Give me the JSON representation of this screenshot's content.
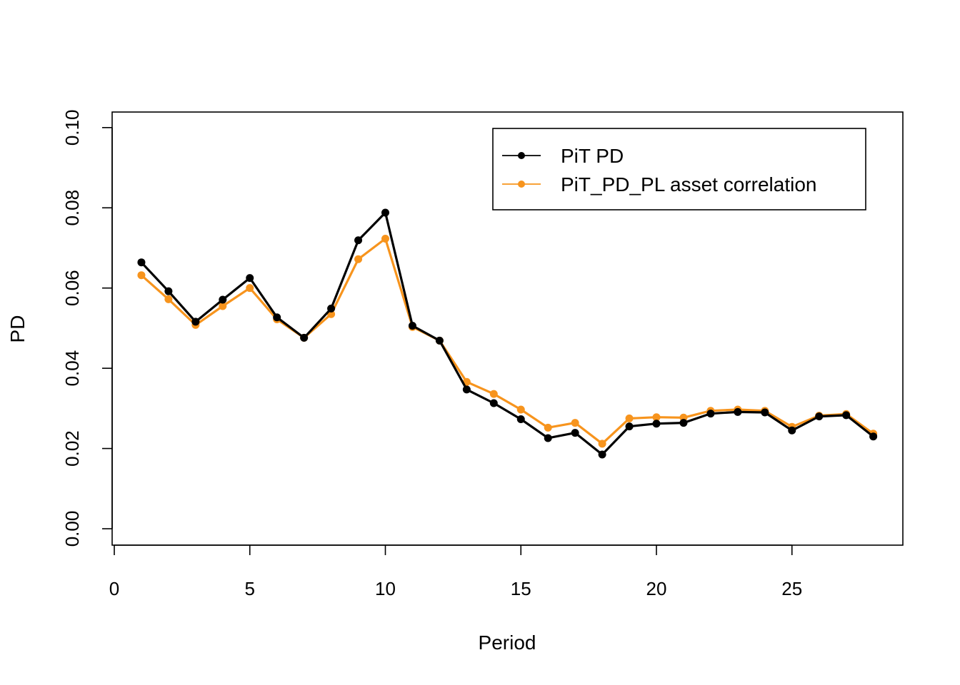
{
  "chart_data": {
    "type": "line",
    "xlabel": "Period",
    "ylabel": "PD",
    "xlim": [
      0,
      28
    ],
    "ylim": [
      0,
      0.1
    ],
    "x_ticks": [
      "0",
      "5",
      "10",
      "15",
      "20",
      "25"
    ],
    "x_tick_values": [
      0,
      5,
      10,
      15,
      20,
      25
    ],
    "y_ticks": [
      "0.00",
      "0.02",
      "0.04",
      "0.06",
      "0.08",
      "0.10"
    ],
    "y_tick_values": [
      0,
      0.02,
      0.04,
      0.06,
      0.08,
      0.1
    ],
    "grid": false,
    "legend_position": "top-right",
    "x": [
      1,
      2,
      3,
      4,
      5,
      6,
      7,
      8,
      9,
      10,
      11,
      12,
      13,
      14,
      15,
      16,
      17,
      18,
      19,
      20,
      21,
      22,
      23,
      24,
      25,
      26,
      27,
      28
    ],
    "series": [
      {
        "name": "PiT PD",
        "color": "#000000",
        "values": [
          0.0664,
          0.0592,
          0.0516,
          0.0571,
          0.0625,
          0.0527,
          0.0476,
          0.0549,
          0.0719,
          0.0788,
          0.0506,
          0.0469,
          0.0347,
          0.0313,
          0.0273,
          0.0226,
          0.0239,
          0.0185,
          0.0255,
          0.0262,
          0.0264,
          0.0287,
          0.0291,
          0.029,
          0.0245,
          0.028,
          0.0283,
          0.023
        ]
      },
      {
        "name": "PiT_PD_PL asset correlation",
        "color": "#F7941D",
        "values": [
          0.0632,
          0.0572,
          0.0508,
          0.0555,
          0.06,
          0.0522,
          0.0476,
          0.0535,
          0.0672,
          0.0723,
          0.0503,
          0.0469,
          0.0366,
          0.0336,
          0.0297,
          0.0252,
          0.0264,
          0.0212,
          0.0275,
          0.0278,
          0.0277,
          0.0294,
          0.0297,
          0.0294,
          0.0254,
          0.0282,
          0.0286,
          0.0237
        ]
      }
    ]
  }
}
